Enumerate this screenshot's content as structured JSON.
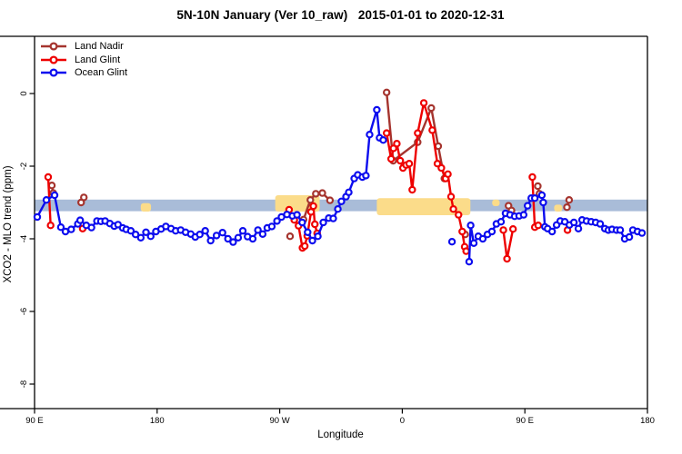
{
  "chart_data": {
    "type": "line",
    "title": "5N-10N January (Ver 10_raw)   2015-01-01 to 2020-12-31",
    "xlabel": "Longitude",
    "ylabel": "XCO2 - MLO trend (ppm)",
    "x_axis": {
      "range": [
        0,
        450
      ],
      "ticks": [
        0,
        90,
        180,
        270,
        360,
        450
      ],
      "tick_labels": [
        "90 E",
        "180",
        "90 W",
        "0",
        "90 E",
        "180"
      ],
      "note": "longitude axis wraps eastward: 90E to 180 to 90W to 0 to 90E to 180; units below are degrees east of 90E along the axis"
    },
    "y_axis": {
      "range_top": 1.575,
      "range_bottom": -8.675,
      "ticks": [
        0,
        -2,
        -4,
        -6,
        -8
      ],
      "tick_labels": [
        "0",
        "-2",
        "-4",
        "-6",
        "-8"
      ]
    },
    "grid": "off",
    "legend_position": "top-left inside plot",
    "reference_band": {
      "color": "#A9BCD8",
      "y_top": -2.92,
      "y_bottom": -3.24
    },
    "highlight_patches": {
      "color": "#FBDC8A",
      "rects": [
        {
          "x": [
            78,
            85.5
          ],
          "y": [
            -3.02,
            -3.25
          ]
        },
        {
          "x": [
            176.7,
            209.3
          ],
          "y": [
            -2.8,
            -3.25
          ]
        },
        {
          "x": [
            251.3,
            320
          ],
          "y": [
            -2.88,
            -3.35
          ]
        },
        {
          "x": [
            336,
            341.5
          ],
          "y": [
            -2.92,
            -3.1
          ]
        },
        {
          "x": [
            381.5,
            387.5
          ],
          "y": [
            -3.06,
            -3.25
          ]
        }
      ]
    },
    "series": [
      {
        "name": "Land Nadir",
        "color": "#A5342E",
        "segments": [
          [
            [
              12.7,
              -2.53
            ],
            [
              13.7,
              -2.74
            ]
          ],
          [
            [
              34.2,
              -3.0
            ],
            [
              36.2,
              -2.86
            ]
          ],
          [
            [
              187.6,
              -3.93
            ]
          ],
          [
            [
              197.5,
              -3.47
            ],
            [
              202.5,
              -2.93
            ],
            [
              206.5,
              -2.76
            ],
            [
              211.3,
              -2.74
            ],
            [
              216.9,
              -2.94
            ]
          ],
          [
            [
              258.5,
              0.03
            ],
            [
              263.3,
              -1.85
            ],
            [
              281.3,
              -1.34
            ],
            [
              291.3,
              -0.4
            ],
            [
              296.4,
              -1.45
            ],
            [
              300.9,
              -2.34
            ]
          ],
          [
            [
              316.2,
              -3.88
            ]
          ],
          [
            [
              348,
              -3.09
            ],
            [
              350.2,
              -3.22
            ]
          ],
          [
            [
              369.5,
              -2.55
            ],
            [
              370.7,
              -2.76
            ]
          ],
          [
            [
              390.9,
              -3.13
            ],
            [
              392.5,
              -2.93
            ]
          ]
        ]
      },
      {
        "name": "Land Glint",
        "color": "#EE0000",
        "segments": [
          [
            [
              10,
              -2.3
            ],
            [
              11.8,
              -3.63
            ]
          ],
          [
            [
              35.3,
              -3.72
            ]
          ],
          [
            [
              186.9,
              -3.2
            ],
            [
              190.7,
              -3.48
            ],
            [
              193.8,
              -3.64
            ],
            [
              196.7,
              -4.25
            ],
            [
              198.4,
              -4.2
            ],
            [
              200.2,
              -3.92
            ],
            [
              203,
              -3.26
            ],
            [
              204.7,
              -3.1
            ],
            [
              205.8,
              -3.6
            ],
            [
              207.5,
              -3.85
            ]
          ],
          [
            [
              258.5,
              -1.09
            ],
            [
              261.8,
              -1.8
            ],
            [
              263.5,
              -1.51
            ],
            [
              266,
              -1.38
            ],
            [
              268.5,
              -1.85
            ],
            [
              270.5,
              -2.05
            ],
            [
              272.8,
              -1.97
            ],
            [
              275.1,
              -1.93
            ],
            [
              277.3,
              -2.65
            ],
            [
              281.3,
              -1.09
            ],
            [
              285.8,
              -0.26
            ],
            [
              292,
              -1.01
            ],
            [
              295.8,
              -1.93
            ],
            [
              298.7,
              -2.05
            ],
            [
              301.8,
              -2.34
            ],
            [
              303.5,
              -2.22
            ],
            [
              305.8,
              -2.84
            ],
            [
              307.5,
              -3.18
            ],
            [
              311.3,
              -3.34
            ],
            [
              314,
              -3.8
            ],
            [
              315.8,
              -4.22
            ],
            [
              316.9,
              -4.34
            ]
          ],
          [
            [
              344.2,
              -3.76
            ],
            [
              346.9,
              -4.55
            ],
            [
              351.3,
              -3.73
            ]
          ],
          [
            [
              365.5,
              -2.3
            ],
            [
              367.3,
              -3.68
            ],
            [
              369.8,
              -3.63
            ]
          ],
          [
            [
              391.3,
              -3.76
            ]
          ]
        ]
      },
      {
        "name": "Ocean Glint",
        "color": "#0C0CEE",
        "segments": [
          [
            [
              2,
              -3.4
            ],
            [
              8.7,
              -2.93
            ],
            [
              14.7,
              -2.8
            ],
            [
              19.3,
              -3.68
            ],
            [
              22.7,
              -3.8
            ],
            [
              26.9,
              -3.74
            ],
            [
              31.8,
              -3.59
            ],
            [
              33.5,
              -3.49
            ],
            [
              38,
              -3.63
            ],
            [
              41.8,
              -3.69
            ],
            [
              45.8,
              -3.51
            ],
            [
              48.7,
              -3.52
            ],
            [
              51.8,
              -3.51
            ],
            [
              55.3,
              -3.58
            ],
            [
              58.5,
              -3.65
            ],
            [
              61.3,
              -3.61
            ],
            [
              64.7,
              -3.7
            ],
            [
              67.3,
              -3.74
            ],
            [
              70.7,
              -3.78
            ],
            [
              74.2,
              -3.88
            ],
            [
              78,
              -3.97
            ],
            [
              81.8,
              -3.82
            ],
            [
              85.3,
              -3.93
            ],
            [
              89.1,
              -3.8
            ],
            [
              92.9,
              -3.73
            ],
            [
              96.4,
              -3.66
            ],
            [
              100.2,
              -3.72
            ],
            [
              103.6,
              -3.78
            ],
            [
              107.3,
              -3.76
            ],
            [
              110.9,
              -3.82
            ],
            [
              114.7,
              -3.87
            ],
            [
              118,
              -3.95
            ],
            [
              121.3,
              -3.88
            ],
            [
              125.3,
              -3.78
            ],
            [
              129.3,
              -4.05
            ],
            [
              133.6,
              -3.91
            ],
            [
              138,
              -3.83
            ],
            [
              142,
              -4.0
            ],
            [
              145.8,
              -4.09
            ],
            [
              149.5,
              -3.97
            ],
            [
              152.9,
              -3.78
            ],
            [
              156.4,
              -3.94
            ],
            [
              160.2,
              -4.0
            ],
            [
              164,
              -3.76
            ],
            [
              167.5,
              -3.87
            ],
            [
              170.9,
              -3.7
            ],
            [
              174.2,
              -3.66
            ],
            [
              178,
              -3.51
            ],
            [
              181.3,
              -3.4
            ],
            [
              185.3,
              -3.33
            ],
            [
              189.3,
              -3.37
            ],
            [
              192.7,
              -3.34
            ],
            [
              196.5,
              -3.55
            ],
            [
              200.5,
              -3.82
            ],
            [
              204,
              -4.05
            ],
            [
              208,
              -3.93
            ],
            [
              212,
              -3.55
            ],
            [
              216,
              -3.43
            ],
            [
              219.3,
              -3.44
            ],
            [
              222.7,
              -3.18
            ],
            [
              225.3,
              -2.97
            ],
            [
              228.7,
              -2.84
            ],
            [
              230.7,
              -2.72
            ],
            [
              234.7,
              -2.34
            ],
            [
              237.3,
              -2.24
            ],
            [
              240.7,
              -2.3
            ],
            [
              243.3,
              -2.26
            ],
            [
              246,
              -1.13
            ],
            [
              251.3,
              -0.45
            ],
            [
              253.3,
              -1.22
            ],
            [
              256,
              -1.28
            ]
          ],
          [
            [
              306.5,
              -4.08
            ]
          ],
          [
            [
              319.1,
              -4.63
            ],
            [
              320.2,
              -3.63
            ],
            [
              322.5,
              -4.12
            ],
            [
              325.8,
              -3.93
            ],
            [
              329.1,
              -4.0
            ],
            [
              332.5,
              -3.88
            ],
            [
              335.8,
              -3.8
            ],
            [
              339.1,
              -3.59
            ],
            [
              342.5,
              -3.53
            ],
            [
              345.8,
              -3.3
            ],
            [
              349.1,
              -3.34
            ],
            [
              352.5,
              -3.38
            ],
            [
              355.8,
              -3.37
            ],
            [
              359.1,
              -3.34
            ],
            [
              362,
              -3.09
            ],
            [
              364.7,
              -2.88
            ],
            [
              367.3,
              -2.88
            ],
            [
              372.5,
              -2.8
            ],
            [
              373.5,
              -3.0
            ],
            [
              374.7,
              -3.67
            ],
            [
              376.7,
              -3.72
            ],
            [
              380,
              -3.8
            ],
            [
              383.3,
              -3.62
            ],
            [
              386,
              -3.51
            ],
            [
              389.3,
              -3.53
            ],
            [
              392.7,
              -3.62
            ],
            [
              396,
              -3.55
            ],
            [
              399.3,
              -3.72
            ],
            [
              402,
              -3.48
            ],
            [
              405.3,
              -3.51
            ],
            [
              408.7,
              -3.53
            ],
            [
              412,
              -3.55
            ],
            [
              415.3,
              -3.59
            ],
            [
              418.7,
              -3.72
            ],
            [
              421.3,
              -3.76
            ],
            [
              424,
              -3.74
            ],
            [
              427.3,
              -3.76
            ],
            [
              430,
              -3.76
            ],
            [
              433.3,
              -4.0
            ],
            [
              436.7,
              -3.95
            ],
            [
              439.3,
              -3.76
            ],
            [
              442.7,
              -3.8
            ],
            [
              446,
              -3.84
            ]
          ]
        ]
      }
    ]
  }
}
